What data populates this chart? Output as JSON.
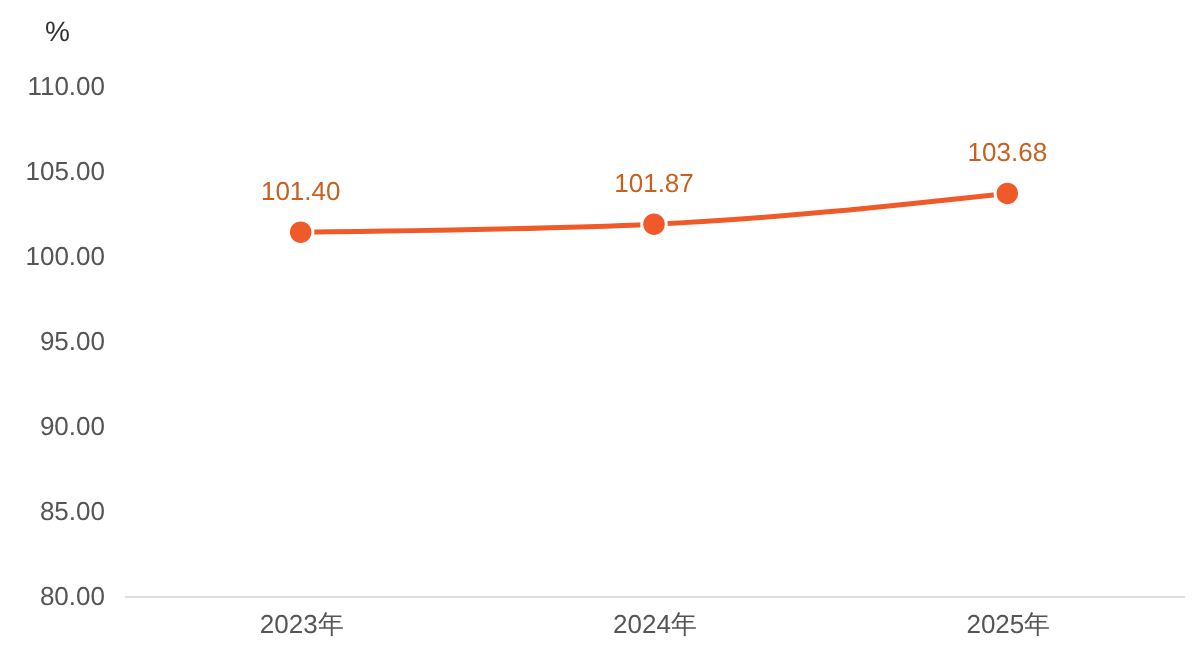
{
  "chart_data": {
    "type": "line",
    "ylabel": "%",
    "categories": [
      "2023年",
      "2024年",
      "2025年"
    ],
    "series": [
      {
        "color": "#f05a28",
        "values": [
          101.4,
          101.87,
          103.68
        ],
        "value_labels": [
          "101.40",
          "101.87",
          "103.68"
        ]
      }
    ],
    "ylim": [
      80,
      110
    ],
    "yticks": [
      {
        "value": 80,
        "label": "80.00"
      },
      {
        "value": 85,
        "label": "85.00"
      },
      {
        "value": 90,
        "label": "90.00"
      },
      {
        "value": 95,
        "label": "95.00"
      },
      {
        "value": 100,
        "label": "100.00"
      },
      {
        "value": 105,
        "label": "105.00"
      },
      {
        "value": 110,
        "label": "110.00"
      }
    ],
    "grid": false,
    "marker": "circle",
    "line_style": "solid"
  }
}
